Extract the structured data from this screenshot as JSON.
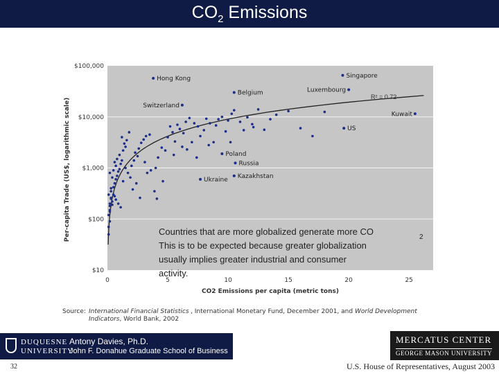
{
  "slide": {
    "title_main": "CO",
    "title_sub": "2",
    "title_rest": " Emissions",
    "slide_number": "32",
    "footer_note": "U.S. House of Representatives, August 2003"
  },
  "caption": {
    "line1": "Countries that are more globalized generate more CO",
    "line1_sub": "2",
    "line2": "This is to be expected because greater globalization",
    "line3": "usually implies greater industrial and consumer",
    "line4": "activity."
  },
  "source": {
    "label": "Source:",
    "ref1_italic": "International Financial Statistics",
    "ref1_italic2": "Indicators",
    "ref1_rest": ", World Bank, 2002",
    "ref2": ", International Monetary Fund, December 2001, and",
    "ref3_italic": "World Development"
  },
  "logos": {
    "left_line1": "DUQUESNE",
    "left_line2": "UNIVERSITY",
    "left_name": "Antony Davies, Ph.D.",
    "left_school": "John F. Donahue Graduate School of Business",
    "right_line1": "MERCATUS CENTER",
    "right_line2": "GEORGE MASON UNIVERSITY"
  },
  "chart_data": {
    "type": "scatter",
    "title": "",
    "xlabel": "CO2 Emissions per capita (metric tons)",
    "ylabel": "Per-capita Trade (US$, logarithmic scale)",
    "xlim": [
      0,
      27
    ],
    "ylim": [
      10,
      100000
    ],
    "y_scale": "log",
    "x_ticks": [
      "0",
      "5",
      "10",
      "15",
      "20",
      "25"
    ],
    "y_ticks": [
      "$10",
      "$100",
      "$1,000",
      "$10,000",
      "$100,000"
    ],
    "r_squared_label": "R² = 0.72",
    "grid": true,
    "trendline": "logarithmic",
    "labeled_points": [
      {
        "name": "Hong Kong",
        "x": 3.8,
        "y": 57000
      },
      {
        "name": "Singapore",
        "x": 19.5,
        "y": 65000
      },
      {
        "name": "Belgium",
        "x": 10.5,
        "y": 30000
      },
      {
        "name": "Luxembourg",
        "x": 20.0,
        "y": 34000
      },
      {
        "name": "Switzerland",
        "x": 6.2,
        "y": 17000
      },
      {
        "name": "Kuwait",
        "x": 25.5,
        "y": 11500
      },
      {
        "name": "US",
        "x": 19.6,
        "y": 6000
      },
      {
        "name": "Poland",
        "x": 9.5,
        "y": 1900
      },
      {
        "name": "Russia",
        "x": 10.6,
        "y": 1250
      },
      {
        "name": "Kazakhstan",
        "x": 10.5,
        "y": 700
      },
      {
        "name": "Ukraine",
        "x": 7.7,
        "y": 600
      }
    ],
    "points": [
      [
        0.1,
        50
      ],
      [
        0.1,
        70
      ],
      [
        0.2,
        90
      ],
      [
        0.1,
        120
      ],
      [
        0.2,
        150
      ],
      [
        0.2,
        200
      ],
      [
        0.3,
        250
      ],
      [
        0.1,
        300
      ],
      [
        0.3,
        350
      ],
      [
        0.2,
        180
      ],
      [
        0.4,
        220
      ],
      [
        0.5,
        300
      ],
      [
        0.3,
        400
      ],
      [
        0.6,
        500
      ],
      [
        0.4,
        650
      ],
      [
        0.2,
        800
      ],
      [
        0.5,
        900
      ],
      [
        0.7,
        1100
      ],
      [
        0.6,
        1300
      ],
      [
        0.8,
        1500
      ],
      [
        0.3,
        260
      ],
      [
        0.4,
        190
      ],
      [
        0.2,
        140
      ],
      [
        0.5,
        420
      ],
      [
        0.6,
        280
      ],
      [
        0.7,
        600
      ],
      [
        0.8,
        700
      ],
      [
        0.9,
        850
      ],
      [
        1.0,
        950
      ],
      [
        1.1,
        1200
      ],
      [
        1.2,
        1400
      ],
      [
        1.0,
        1800
      ],
      [
        1.3,
        2200
      ],
      [
        1.5,
        2600
      ],
      [
        1.4,
        3000
      ],
      [
        1.6,
        3500
      ],
      [
        1.2,
        4000
      ],
      [
        1.8,
        5000
      ],
      [
        1.5,
        1000
      ],
      [
        1.7,
        800
      ],
      [
        1.9,
        650
      ],
      [
        2.0,
        1100
      ],
      [
        2.2,
        1400
      ],
      [
        2.5,
        1700
      ],
      [
        2.3,
        2000
      ],
      [
        2.6,
        2400
      ],
      [
        2.8,
        3100
      ],
      [
        3.0,
        3600
      ],
      [
        3.2,
        4200
      ],
      [
        3.5,
        4500
      ],
      [
        3.3,
        800
      ],
      [
        3.6,
        900
      ],
      [
        4.0,
        1000
      ],
      [
        4.2,
        1600
      ],
      [
        4.5,
        2500
      ],
      [
        4.8,
        2200
      ],
      [
        5.0,
        4000
      ],
      [
        5.2,
        6500
      ],
      [
        5.4,
        5000
      ],
      [
        5.6,
        3300
      ],
      [
        5.8,
        7000
      ],
      [
        6.0,
        5800
      ],
      [
        6.3,
        4800
      ],
      [
        6.5,
        8000
      ],
      [
        6.8,
        9500
      ],
      [
        7.0,
        3200
      ],
      [
        7.2,
        7500
      ],
      [
        7.5,
        6500
      ],
      [
        7.7,
        4200
      ],
      [
        8.0,
        5500
      ],
      [
        8.2,
        9200
      ],
      [
        8.5,
        7500
      ],
      [
        8.8,
        3200
      ],
      [
        9.0,
        6800
      ],
      [
        9.2,
        9000
      ],
      [
        9.5,
        10000
      ],
      [
        9.8,
        5200
      ],
      [
        10.0,
        8500
      ],
      [
        10.3,
        11500
      ],
      [
        10.5,
        13500
      ],
      [
        11.0,
        8000
      ],
      [
        11.3,
        5500
      ],
      [
        11.6,
        9800
      ],
      [
        12.0,
        7200
      ],
      [
        12.5,
        14000
      ],
      [
        13.0,
        5600
      ],
      [
        13.5,
        9000
      ],
      [
        14.0,
        11000
      ],
      [
        15.0,
        13000
      ],
      [
        16.0,
        6000
      ],
      [
        17.0,
        4200
      ],
      [
        18.0,
        12500
      ],
      [
        2.1,
        380
      ],
      [
        1.1,
        170
      ],
      [
        0.9,
        200
      ],
      [
        3.9,
        350
      ],
      [
        4.1,
        250
      ],
      [
        2.4,
        500
      ],
      [
        1.3,
        550
      ],
      [
        0.7,
        240
      ],
      [
        8.4,
        2800
      ],
      [
        6.2,
        2600
      ],
      [
        10.2,
        3200
      ],
      [
        7.4,
        1600
      ],
      [
        12.1,
        6300
      ],
      [
        6.6,
        2300
      ],
      [
        3.1,
        1300
      ],
      [
        5.5,
        1800
      ],
      [
        2.7,
        260
      ],
      [
        4.6,
        550
      ]
    ]
  }
}
